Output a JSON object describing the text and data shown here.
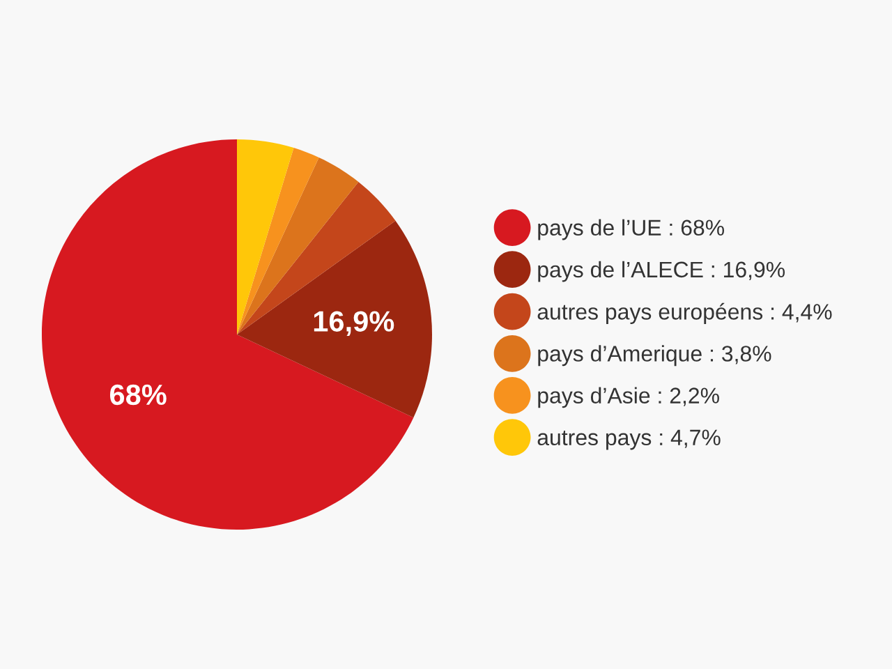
{
  "chart_data": {
    "type": "pie",
    "categories": [
      "pays de l’UE : 68%",
      "pays de l’ALECE : 16,9%",
      "autres pays européens : 4,4%",
      "pays d’Amerique : 3,8%",
      "pays d’Asie : 2,2%",
      "autres pays : 4,7%"
    ],
    "values": [
      68,
      16.9,
      4.4,
      3.8,
      2.2,
      4.7
    ],
    "colors": [
      "#d71920",
      "#9c2710",
      "#c4461b",
      "#dc741c",
      "#f7921e",
      "#ffc709"
    ],
    "value_labels": [
      "68%",
      "16,9%",
      null,
      null,
      null,
      null
    ],
    "legend": "right"
  }
}
